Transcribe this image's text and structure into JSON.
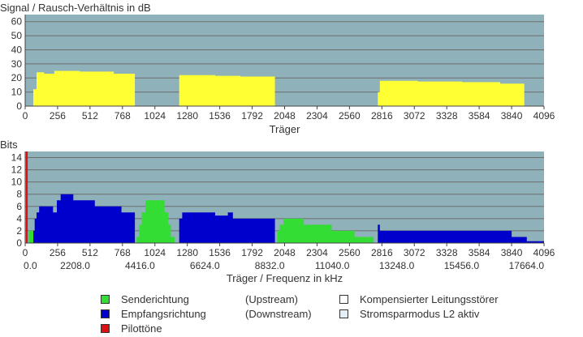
{
  "chart_data": [
    {
      "type": "area",
      "title": "Signal / Rausch-Verhältnis in dB",
      "xlabel": "Träger",
      "xlim": [
        0,
        4096
      ],
      "ylim": [
        0,
        65
      ],
      "x_ticks": [
        "0",
        "256",
        "512",
        "768",
        "1024",
        "1280",
        "1536",
        "1792",
        "2048",
        "2304",
        "2560",
        "2816",
        "3072",
        "3328",
        "3584",
        "3840",
        "4096"
      ],
      "y_ticks": [
        "0",
        "10",
        "20",
        "30",
        "40",
        "50",
        "60"
      ],
      "grid": true,
      "colors": {
        "plot_bg": "#8fb1ba",
        "grid": "#6d6d6d",
        "fill": "#ffff33"
      },
      "series": [
        {
          "color": "#ffff33",
          "points": [
            [
              64,
              0
            ],
            [
              64,
              12
            ],
            [
              90,
              12
            ],
            [
              90,
              24
            ],
            [
              150,
              24
            ],
            [
              150,
              23
            ],
            [
              230,
              23
            ],
            [
              230,
              25
            ],
            [
              430,
              25
            ],
            [
              430,
              24.5
            ],
            [
              700,
              24.5
            ],
            [
              700,
              23
            ],
            [
              866,
              23
            ],
            [
              866,
              0
            ],
            [
              1216,
              0
            ],
            [
              1216,
              22
            ],
            [
              1500,
              22
            ],
            [
              1500,
              21.5
            ],
            [
              1700,
              21.5
            ],
            [
              1700,
              21
            ],
            [
              1972,
              21
            ],
            [
              1972,
              0
            ],
            [
              2784,
              0
            ],
            [
              2784,
              10
            ],
            [
              2800,
              10
            ],
            [
              2800,
              18
            ],
            [
              3100,
              18
            ],
            [
              3100,
              17.5
            ],
            [
              3450,
              17.5
            ],
            [
              3450,
              17
            ],
            [
              3750,
              17
            ],
            [
              3750,
              16
            ],
            [
              3940,
              16
            ],
            [
              3940,
              0
            ]
          ]
        }
      ]
    },
    {
      "type": "area",
      "title": "Bits",
      "xlabel": "Träger / Frequenz in kHz",
      "xlim": [
        0,
        4096
      ],
      "ylim": [
        0,
        15
      ],
      "x_ticks": [
        "0",
        "256",
        "512",
        "768",
        "1024",
        "1280",
        "1536",
        "1792",
        "2048",
        "2304",
        "2560",
        "2816",
        "3072",
        "3328",
        "3584",
        "3840",
        "4096"
      ],
      "freq_ticks": [
        "0.0",
        "2208.0",
        "4416.0",
        "6624.0",
        "8832.0",
        "11040.0",
        "13248.0",
        "15456.0",
        "17664.0"
      ],
      "y_ticks": [
        "0",
        "2",
        "4",
        "6",
        "8",
        "10",
        "12",
        "14"
      ],
      "grid": true,
      "colors": {
        "plot_bg": "#8fb1ba",
        "grid": "#6d6d6d"
      },
      "pilot": {
        "x": [
          6,
          20
        ],
        "value": 15,
        "color": "#dd1111"
      },
      "series": [
        {
          "name": "Senderichtung",
          "color": "#33dd33",
          "points": [
            [
              25,
              0
            ],
            [
              25,
              2
            ],
            [
              64,
              2
            ],
            [
              64,
              0
            ],
            [
              880,
              0
            ],
            [
              880,
              1
            ],
            [
              900,
              1
            ],
            [
              900,
              3
            ],
            [
              920,
              3
            ],
            [
              920,
              5
            ],
            [
              950,
              5
            ],
            [
              950,
              7
            ],
            [
              1100,
              7
            ],
            [
              1100,
              5
            ],
            [
              1130,
              5
            ],
            [
              1130,
              3
            ],
            [
              1150,
              3
            ],
            [
              1150,
              1
            ],
            [
              1180,
              1
            ],
            [
              1180,
              0
            ],
            [
              1990,
              0
            ],
            [
              1990,
              2
            ],
            [
              2010,
              2
            ],
            [
              2010,
              3
            ],
            [
              2040,
              3
            ],
            [
              2040,
              4
            ],
            [
              2200,
              4
            ],
            [
              2200,
              3
            ],
            [
              2420,
              3
            ],
            [
              2420,
              2
            ],
            [
              2600,
              2
            ],
            [
              2600,
              1
            ],
            [
              2750,
              1
            ],
            [
              2750,
              0
            ]
          ]
        },
        {
          "name": "Empfangsrichtung",
          "color": "#0000cc",
          "points": [
            [
              64,
              0
            ],
            [
              64,
              2
            ],
            [
              75,
              2
            ],
            [
              75,
              4
            ],
            [
              90,
              4
            ],
            [
              90,
              5
            ],
            [
              110,
              5
            ],
            [
              110,
              6
            ],
            [
              220,
              6
            ],
            [
              220,
              5
            ],
            [
              250,
              5
            ],
            [
              250,
              7
            ],
            [
              280,
              7
            ],
            [
              280,
              8
            ],
            [
              380,
              8
            ],
            [
              380,
              7
            ],
            [
              550,
              7
            ],
            [
              550,
              6
            ],
            [
              760,
              6
            ],
            [
              760,
              5
            ],
            [
              866,
              5
            ],
            [
              866,
              0
            ],
            [
              1216,
              0
            ],
            [
              1216,
              4
            ],
            [
              1240,
              4
            ],
            [
              1240,
              5
            ],
            [
              1500,
              5
            ],
            [
              1500,
              4.5
            ],
            [
              1600,
              4.5
            ],
            [
              1600,
              5
            ],
            [
              1640,
              5
            ],
            [
              1640,
              4
            ],
            [
              1972,
              4
            ],
            [
              1972,
              0
            ],
            [
              2784,
              0
            ],
            [
              2784,
              3
            ],
            [
              2800,
              3
            ],
            [
              2800,
              2
            ],
            [
              3840,
              2
            ],
            [
              3840,
              1
            ],
            [
              3960,
              1
            ],
            [
              3960,
              0.3
            ],
            [
              4096,
              0.3
            ],
            [
              4096,
              0
            ]
          ]
        }
      ]
    }
  ],
  "legend": {
    "col1": [
      {
        "label": "Senderichtung",
        "color": "#33dd33"
      },
      {
        "label": "Empfangsrichtung",
        "color": "#0000cc"
      },
      {
        "label": "Pilottöne",
        "color": "#dd1111"
      }
    ],
    "col2": [
      {
        "label": "(Upstream)"
      },
      {
        "label": "(Downstream)"
      }
    ],
    "col3": [
      {
        "label": "Kompensierter Leitungsstörer",
        "color": "#ffffff"
      },
      {
        "label": "Stromsparmodus L2 aktiv",
        "color": "#e3eef6"
      }
    ]
  }
}
